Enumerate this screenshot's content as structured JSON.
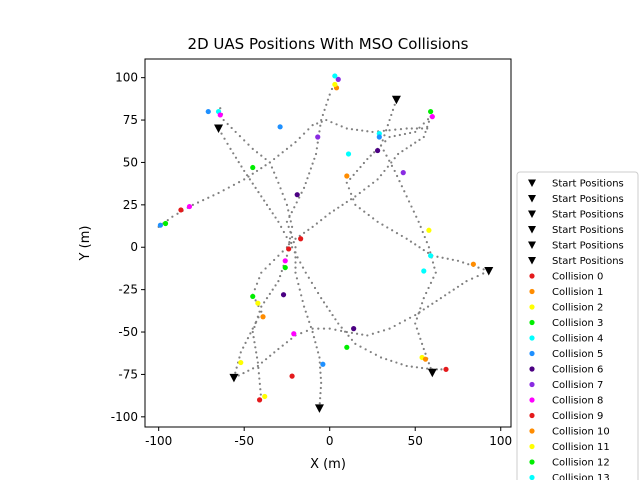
{
  "chart_data": {
    "type": "scatter",
    "title": "2D UAS Positions With MSO Collisions",
    "xlabel": "X (m)",
    "ylabel": "Y (m)",
    "xlim": [
      -108,
      106
    ],
    "ylim": [
      -106,
      111
    ],
    "xticks": [
      -100,
      -50,
      0,
      50,
      100
    ],
    "yticks": [
      -100,
      -75,
      -50,
      -25,
      0,
      25,
      50,
      75,
      100
    ],
    "grid": false,
    "legend_position": "right (cropped at bottom)",
    "start_positions": [
      {
        "x": -65,
        "y": 70
      },
      {
        "x": 39,
        "y": 87
      },
      {
        "x": 93,
        "y": -14
      },
      {
        "x": 60,
        "y": -74
      },
      {
        "x": -56,
        "y": -77
      },
      {
        "x": -6,
        "y": -95
      }
    ],
    "trajectories": [
      [
        [
          -65,
          70
        ],
        [
          -58,
          58
        ],
        [
          -50,
          45
        ],
        [
          -40,
          30
        ],
        [
          -30,
          15
        ],
        [
          -22,
          0
        ],
        [
          -14,
          -15
        ],
        [
          -5,
          -30
        ],
        [
          5,
          -45
        ],
        [
          15,
          -57
        ],
        [
          30,
          -65
        ],
        [
          45,
          -70
        ],
        [
          60,
          -72
        ],
        [
          68,
          -72
        ]
      ],
      [
        [
          39,
          87
        ],
        [
          34,
          72
        ],
        [
          30,
          60
        ],
        [
          22,
          52
        ],
        [
          16,
          45
        ],
        [
          10,
          38
        ],
        [
          15,
          25
        ],
        [
          28,
          15
        ],
        [
          45,
          5
        ],
        [
          60,
          -5
        ],
        [
          75,
          -8
        ],
        [
          93,
          -14
        ]
      ],
      [
        [
          93,
          -14
        ],
        [
          80,
          -20
        ],
        [
          65,
          -30
        ],
        [
          50,
          -40
        ],
        [
          35,
          -48
        ],
        [
          22,
          -52
        ],
        [
          10,
          -50
        ],
        [
          0,
          -48
        ],
        [
          -10,
          -48
        ],
        [
          -20,
          -52
        ],
        [
          -30,
          -60
        ],
        [
          -42,
          -70
        ],
        [
          -56,
          -77
        ]
      ],
      [
        [
          -6,
          -95
        ],
        [
          -5,
          -80
        ],
        [
          -6,
          -65
        ],
        [
          -10,
          -50
        ],
        [
          -15,
          -35
        ],
        [
          -20,
          -15
        ],
        [
          -20,
          0
        ],
        [
          -25,
          15
        ],
        [
          -15,
          35
        ],
        [
          -8,
          55
        ],
        [
          -5,
          75
        ],
        [
          0,
          90
        ],
        [
          4,
          100
        ]
      ],
      [
        [
          -56,
          -77
        ],
        [
          -52,
          -62
        ],
        [
          -45,
          -48
        ],
        [
          -40,
          -38
        ],
        [
          -45,
          -28
        ],
        [
          -40,
          -15
        ],
        [
          -30,
          -5
        ],
        [
          -20,
          5
        ],
        [
          -10,
          12
        ],
        [
          0,
          20
        ],
        [
          15,
          30
        ],
        [
          28,
          40
        ],
        [
          40,
          55
        ],
        [
          55,
          65
        ],
        [
          60,
          80
        ]
      ],
      [
        [
          60,
          -74
        ],
        [
          55,
          -60
        ],
        [
          50,
          -45
        ],
        [
          55,
          -30
        ],
        [
          62,
          -15
        ],
        [
          58,
          0
        ],
        [
          52,
          15
        ],
        [
          45,
          30
        ],
        [
          38,
          45
        ],
        [
          30,
          60
        ],
        [
          35,
          65
        ],
        [
          50,
          68
        ],
        [
          60,
          78
        ]
      ],
      [
        [
          -100,
          12
        ],
        [
          -92,
          18
        ],
        [
          -80,
          25
        ],
        [
          -65,
          32
        ],
        [
          -50,
          40
        ],
        [
          -35,
          50
        ],
        [
          -20,
          62
        ],
        [
          -10,
          72
        ],
        [
          -2,
          75
        ],
        [
          10,
          70
        ],
        [
          25,
          68
        ],
        [
          45,
          70
        ],
        [
          60,
          70
        ]
      ],
      [
        [
          -64,
          82
        ],
        [
          -62,
          75
        ],
        [
          -55,
          68
        ],
        [
          -45,
          58
        ],
        [
          -35,
          50
        ],
        [
          -30,
          38
        ],
        [
          -25,
          25
        ],
        [
          -22,
          12
        ],
        [
          -25,
          -5
        ],
        [
          -30,
          -20
        ],
        [
          -40,
          -35
        ],
        [
          -45,
          -50
        ],
        [
          -42,
          -68
        ],
        [
          -40,
          -90
        ]
      ]
    ],
    "collisions": [
      {
        "name": "Collision 0",
        "color": "#e41a1c",
        "points": [
          [
            -24,
            -1
          ],
          [
            -17,
            5
          ],
          [
            -87,
            22
          ],
          [
            68,
            -72
          ]
        ]
      },
      {
        "name": "Collision 1",
        "color": "#ff8c00",
        "points": [
          [
            10,
            42
          ],
          [
            4,
            94
          ],
          [
            84,
            -10
          ],
          [
            -39,
            -41
          ]
        ]
      },
      {
        "name": "Collision 2",
        "color": "#ffff00",
        "points": [
          [
            3,
            96
          ],
          [
            -52,
            -68
          ],
          [
            58,
            10
          ],
          [
            54,
            -65
          ]
        ]
      },
      {
        "name": "Collision 3",
        "color": "#00ee00",
        "points": [
          [
            -45,
            47
          ],
          [
            -96,
            14
          ],
          [
            59,
            80
          ],
          [
            -45,
            -29
          ]
        ]
      },
      {
        "name": "Collision 4",
        "color": "#00ffff",
        "points": [
          [
            11,
            55
          ],
          [
            29,
            67
          ],
          [
            55,
            -14
          ],
          [
            -65,
            80
          ]
        ]
      },
      {
        "name": "Collision 5",
        "color": "#1e90ff",
        "points": [
          [
            -29,
            71
          ],
          [
            -71,
            80
          ],
          [
            -99,
            13
          ],
          [
            29,
            65
          ],
          [
            -4,
            -69
          ]
        ]
      },
      {
        "name": "Collision 6",
        "color": "#4b0082",
        "points": [
          [
            -19,
            31
          ],
          [
            28,
            57
          ],
          [
            -27,
            -28
          ],
          [
            14,
            -48
          ]
        ]
      },
      {
        "name": "Collision 7",
        "color": "#8a2be2",
        "points": [
          [
            -7,
            65
          ],
          [
            43,
            44
          ],
          [
            5,
            99
          ]
        ]
      },
      {
        "name": "Collision 8",
        "color": "#ff00ff",
        "points": [
          [
            -64,
            78
          ],
          [
            -82,
            24
          ],
          [
            60,
            77
          ],
          [
            -26,
            -8
          ],
          [
            -21,
            -51
          ]
        ]
      },
      {
        "name": "Collision 9",
        "color": "#e41a1c",
        "points": [
          [
            -22,
            -76
          ],
          [
            -41,
            -90
          ]
        ]
      },
      {
        "name": "Collision 10",
        "color": "#ff8c00",
        "points": [
          [
            56,
            -66
          ]
        ]
      },
      {
        "name": "Collision 11",
        "color": "#ffff00",
        "points": [
          [
            -42,
            -33
          ],
          [
            -38,
            -88
          ]
        ]
      },
      {
        "name": "Collision 12",
        "color": "#00ee00",
        "points": [
          [
            10,
            -59
          ],
          [
            -26,
            -12
          ]
        ]
      },
      {
        "name": "Collision 13",
        "color": "#00ffff",
        "points": [
          [
            59,
            -5
          ],
          [
            3,
            101
          ]
        ]
      }
    ],
    "legend": [
      {
        "label": "Start Positions",
        "kind": "triangle",
        "color": "#000000"
      },
      {
        "label": "Start Positions",
        "kind": "triangle",
        "color": "#000000"
      },
      {
        "label": "Start Positions",
        "kind": "triangle",
        "color": "#000000"
      },
      {
        "label": "Start Positions",
        "kind": "triangle",
        "color": "#000000"
      },
      {
        "label": "Start Positions",
        "kind": "triangle",
        "color": "#000000"
      },
      {
        "label": "Start Positions",
        "kind": "triangle",
        "color": "#000000"
      },
      {
        "label": "Collision 0",
        "kind": "dot",
        "color": "#e41a1c"
      },
      {
        "label": "Collision 1",
        "kind": "dot",
        "color": "#ff8c00"
      },
      {
        "label": "Collision 2",
        "kind": "dot",
        "color": "#ffff00"
      },
      {
        "label": "Collision 3",
        "kind": "dot",
        "color": "#00ee00"
      },
      {
        "label": "Collision 4",
        "kind": "dot",
        "color": "#00ffff"
      },
      {
        "label": "Collision 5",
        "kind": "dot",
        "color": "#1e90ff"
      },
      {
        "label": "Collision 6",
        "kind": "dot",
        "color": "#4b0082"
      },
      {
        "label": "Collision 7",
        "kind": "dot",
        "color": "#8a2be2"
      },
      {
        "label": "Collision 8",
        "kind": "dot",
        "color": "#ff00ff"
      },
      {
        "label": "Collision 9",
        "kind": "dot",
        "color": "#e41a1c"
      },
      {
        "label": "Collision 10",
        "kind": "dot",
        "color": "#ff8c00"
      },
      {
        "label": "Collision 11",
        "kind": "dot",
        "color": "#ffff00"
      },
      {
        "label": "Collision 12",
        "kind": "dot",
        "color": "#00ee00"
      },
      {
        "label": "Collision 13",
        "kind": "dot",
        "color": "#00ffff"
      }
    ]
  }
}
